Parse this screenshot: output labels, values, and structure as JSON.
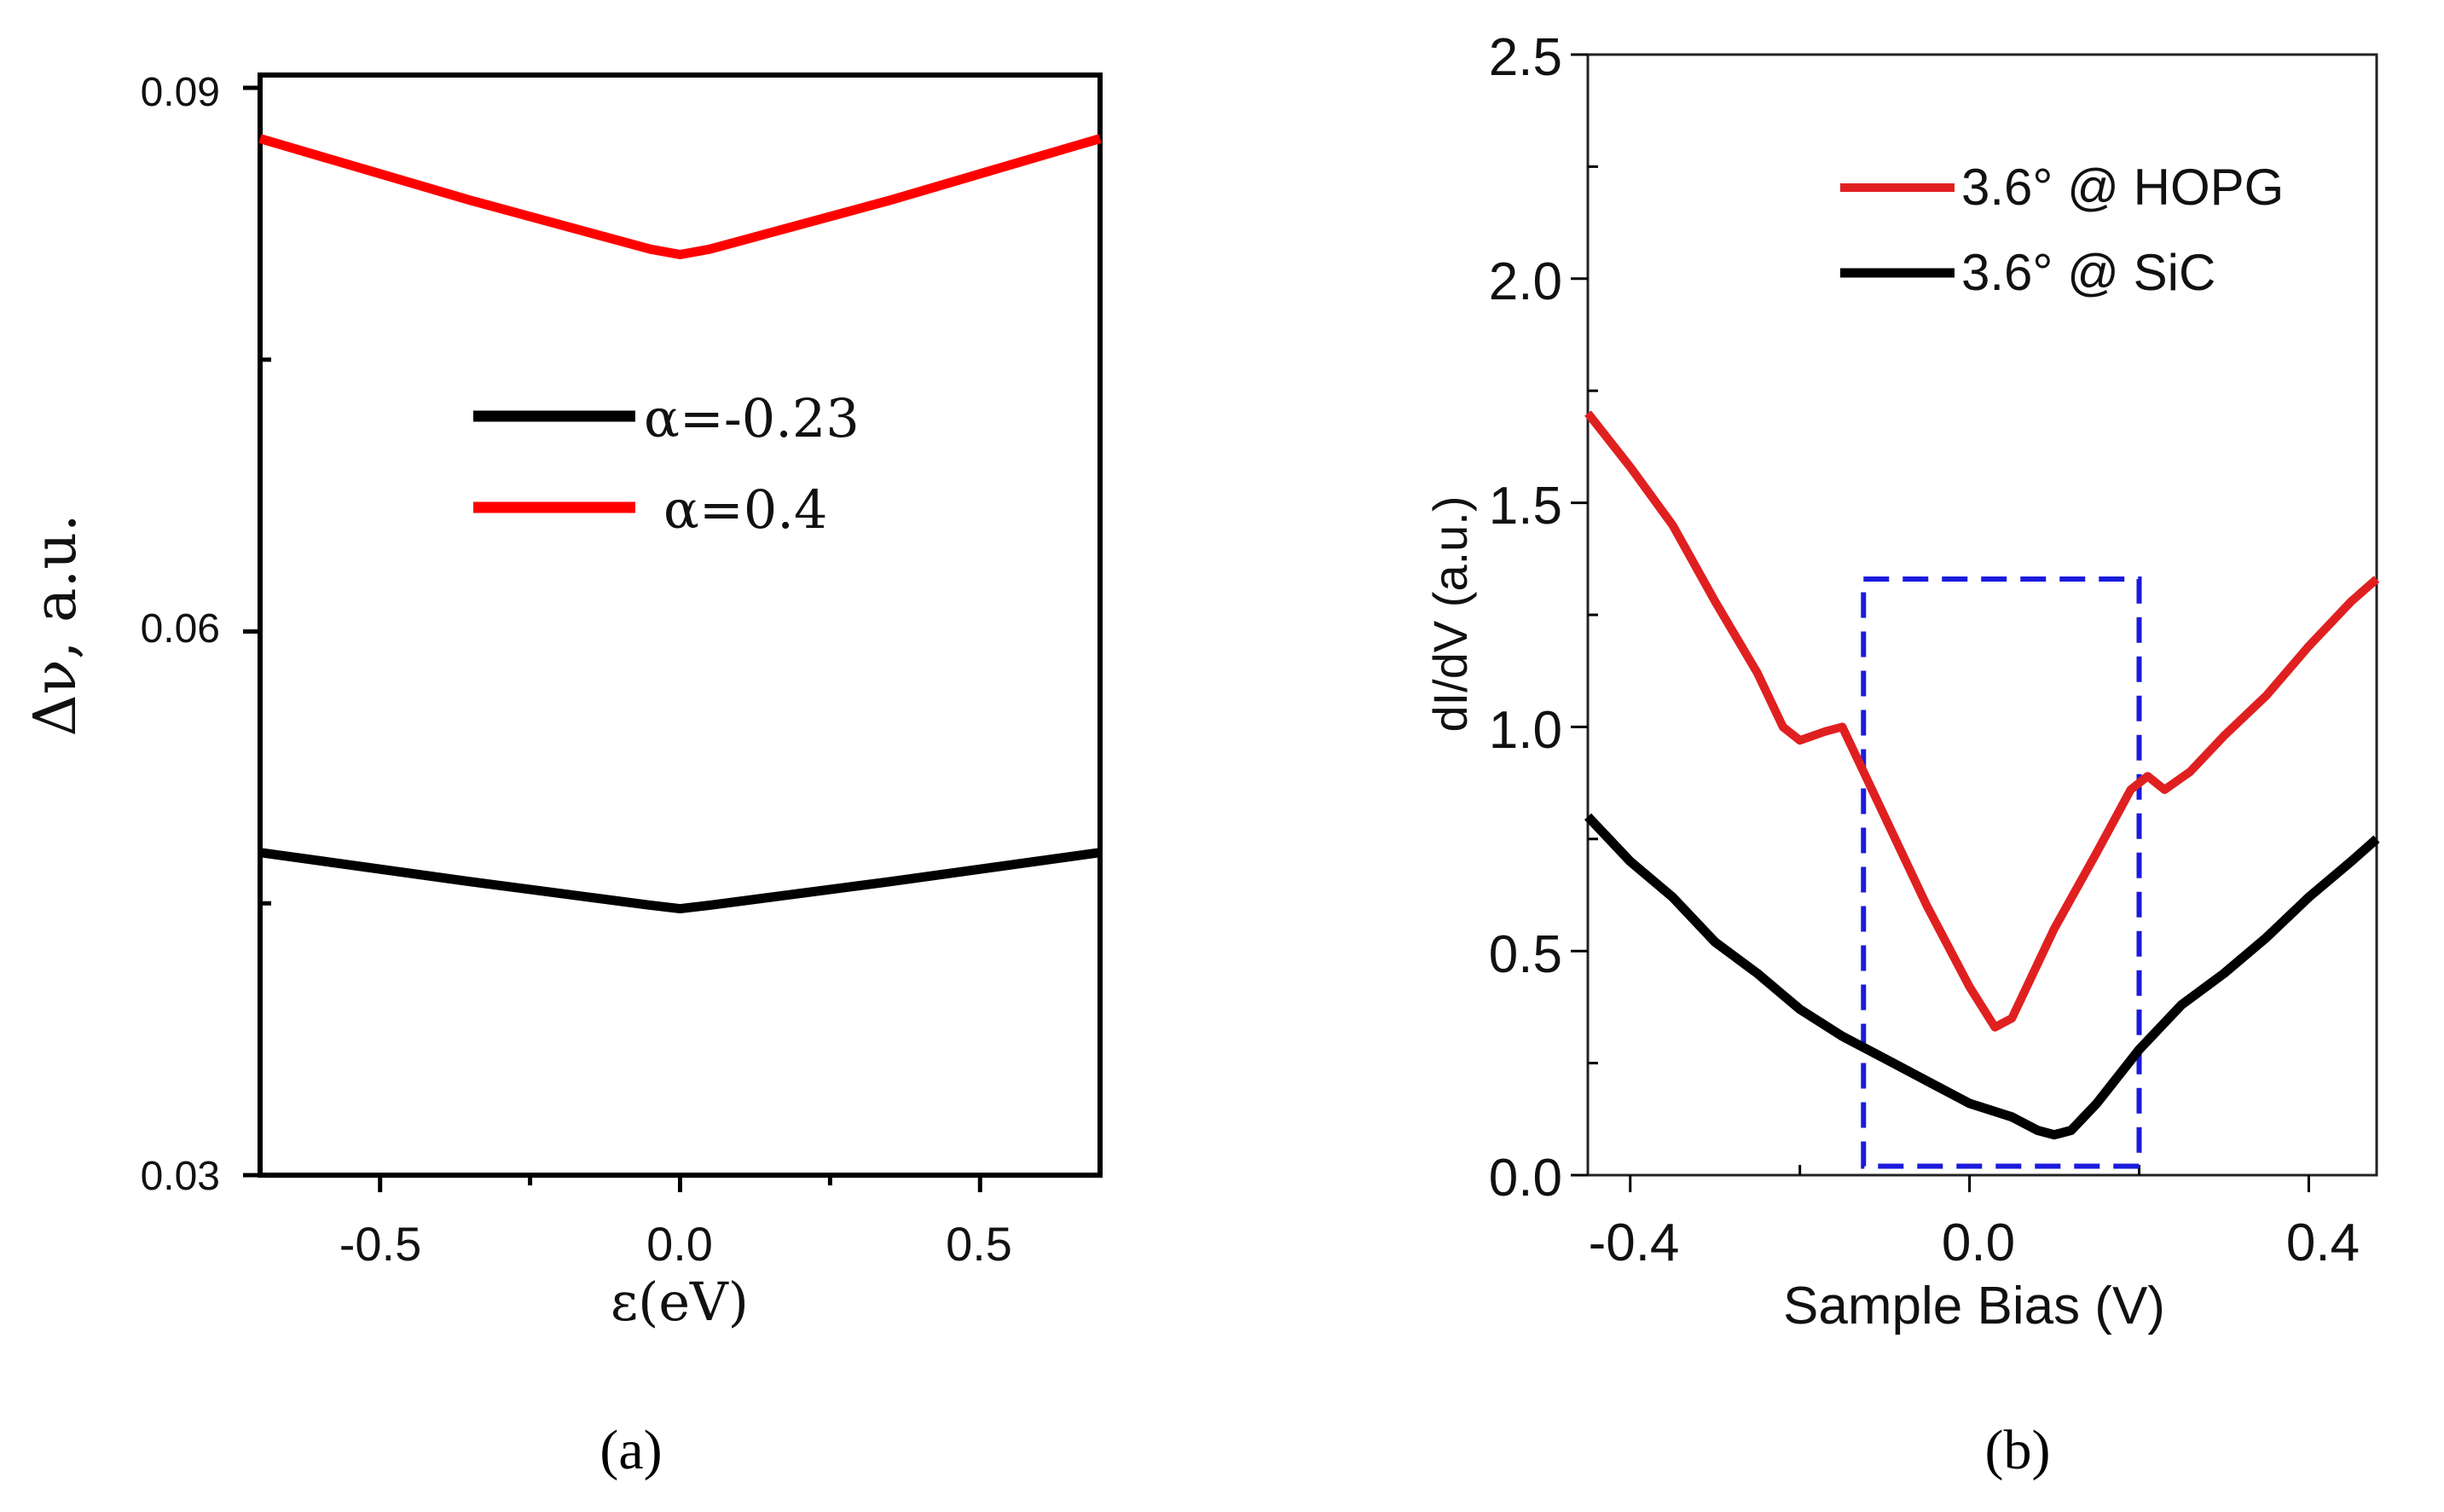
{
  "chart_data": [
    {
      "panel": "a",
      "type": "line",
      "title": "",
      "xlabel": "ε(eV)",
      "ylabel": "Δν, a.u.",
      "xlim": [
        -0.7,
        0.7
      ],
      "ylim": [
        0.03,
        0.09
      ],
      "xticks": [
        -0.5,
        0.0,
        0.5
      ],
      "xtick_labels": [
        "-0.5",
        "0.0",
        "0.5"
      ],
      "yticks": [
        0.03,
        0.06,
        0.09
      ],
      "ytick_labels": [
        "0.03",
        "0.06",
        "0.09"
      ],
      "grid": false,
      "legend_position": "center",
      "series": [
        {
          "name": "α=-0.23",
          "color": "#000000",
          "x": [
            -0.7,
            -0.35,
            -0.05,
            0.0,
            0.05,
            0.35,
            0.7
          ],
          "y": [
            0.0478,
            0.0462,
            0.0449,
            0.0447,
            0.0449,
            0.0462,
            0.0478
          ]
        },
        {
          "name": "α=0.4",
          "color": "#ff0000",
          "x": [
            -0.7,
            -0.35,
            -0.05,
            0.0,
            0.05,
            0.35,
            0.7
          ],
          "y": [
            0.0872,
            0.0838,
            0.0811,
            0.0808,
            0.0811,
            0.0838,
            0.0872
          ]
        }
      ],
      "caption": "(a)"
    },
    {
      "panel": "b",
      "type": "line",
      "title": "",
      "xlabel": "Sample Bias (V)",
      "ylabel": "dI/dV (a.u.)",
      "xlim": [
        -0.45,
        0.48
      ],
      "ylim": [
        0.0,
        2.5
      ],
      "xticks": [
        -0.4,
        0.0,
        0.4
      ],
      "xtick_labels": [
        "-0.4",
        "0.0",
        "0.4"
      ],
      "yticks": [
        0.0,
        0.5,
        1.0,
        1.5,
        2.0,
        2.5
      ],
      "ytick_labels": [
        "0.0",
        "0.5",
        "1.0",
        "1.5",
        "2.0",
        "2.5"
      ],
      "grid": false,
      "legend_position": "top-right",
      "series": [
        {
          "name": "3.6° @ HOPG",
          "color": "#e02020",
          "x": [
            -0.45,
            -0.4,
            -0.35,
            -0.3,
            -0.25,
            -0.22,
            -0.2,
            -0.17,
            -0.15,
            -0.13,
            -0.1,
            -0.05,
            0.0,
            0.03,
            0.05,
            0.1,
            0.15,
            0.19,
            0.21,
            0.23,
            0.26,
            0.3,
            0.35,
            0.4,
            0.45,
            0.48
          ],
          "y": [
            1.7,
            1.58,
            1.45,
            1.28,
            1.12,
            1.0,
            0.97,
            0.99,
            1.0,
            0.92,
            0.8,
            0.6,
            0.42,
            0.33,
            0.35,
            0.55,
            0.72,
            0.86,
            0.89,
            0.86,
            0.9,
            0.98,
            1.07,
            1.18,
            1.28,
            1.33
          ]
        },
        {
          "name": "3.6° @ SiC",
          "color": "#000000",
          "x": [
            -0.45,
            -0.4,
            -0.35,
            -0.3,
            -0.25,
            -0.2,
            -0.15,
            -0.1,
            -0.05,
            0.0,
            0.05,
            0.08,
            0.1,
            0.12,
            0.15,
            0.2,
            0.25,
            0.3,
            0.35,
            0.4,
            0.45,
            0.48
          ],
          "y": [
            0.8,
            0.7,
            0.62,
            0.52,
            0.45,
            0.37,
            0.31,
            0.26,
            0.21,
            0.16,
            0.13,
            0.1,
            0.09,
            0.1,
            0.16,
            0.28,
            0.38,
            0.45,
            0.53,
            0.62,
            0.7,
            0.75
          ]
        }
      ],
      "highlight_box": {
        "x0": -0.125,
        "x1": 0.2,
        "y0": 0.02,
        "y1": 1.33,
        "color": "#1a1adc",
        "style": "dashed"
      },
      "caption": "(b)"
    }
  ]
}
